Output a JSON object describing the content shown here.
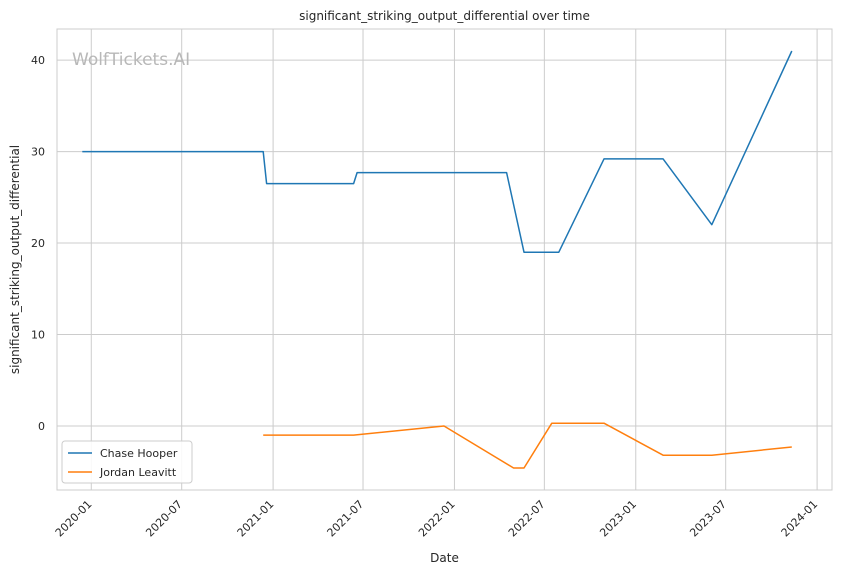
{
  "watermark": "WolfTickets.AI",
  "chart_data": {
    "type": "line",
    "title": "significant_striking_output_differential over time",
    "xlabel": "Date",
    "ylabel": "significant_striking_output_differential",
    "x_ticks": [
      "2020-01",
      "2020-07",
      "2021-01",
      "2021-07",
      "2022-01",
      "2022-07",
      "2023-01",
      "2023-07",
      "2024-01"
    ],
    "y_ticks": [
      0,
      10,
      20,
      30,
      40
    ],
    "xlim": [
      "2019-10-24",
      "2024-01-31"
    ],
    "ylim": [
      -7.0,
      43.4
    ],
    "grid": true,
    "legend_position": "lower-left",
    "series": [
      {
        "name": "Chase Hooper",
        "color": "#1f77b4",
        "x": [
          "2019-12-14",
          "2020-12-12",
          "2020-12-19",
          "2021-06-12",
          "2021-06-19",
          "2022-04-16",
          "2022-05-21",
          "2022-07-30",
          "2022-10-29",
          "2023-02-25",
          "2023-06-03",
          "2023-11-11"
        ],
        "y": [
          30.0,
          30.0,
          26.5,
          26.5,
          27.7,
          27.7,
          19.0,
          19.0,
          29.2,
          29.2,
          22.0,
          41.0
        ]
      },
      {
        "name": "Jordan Leavitt",
        "color": "#ff7f0e",
        "x": [
          "2020-12-12",
          "2021-06-12",
          "2021-12-11",
          "2022-04-30",
          "2022-05-21",
          "2022-07-16",
          "2022-10-29",
          "2023-02-25",
          "2023-06-03",
          "2023-11-11"
        ],
        "y": [
          -1.0,
          -1.0,
          0.0,
          -4.6,
          -4.6,
          0.3,
          0.3,
          -3.2,
          -3.2,
          -2.3
        ]
      }
    ]
  }
}
